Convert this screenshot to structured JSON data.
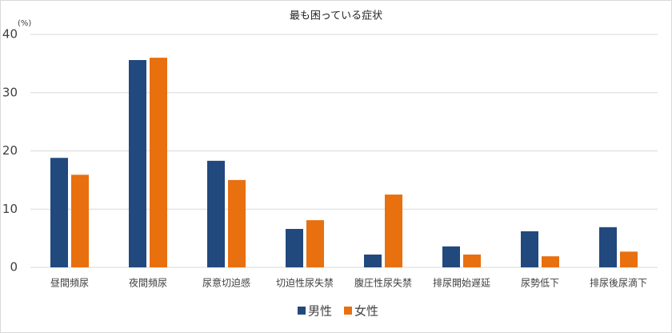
{
  "chart_data": {
    "type": "bar",
    "title": "最も困っている症状",
    "ylabel": "(%)",
    "categories": [
      "昼間頻尿",
      "夜間頻尿",
      "尿意切迫感",
      "切迫性尿失禁",
      "腹圧性尿失禁",
      "排尿開始遅延",
      "尿勢低下",
      "排尿後尿滴下"
    ],
    "series": [
      {
        "name": "男性",
        "color": "#22497d",
        "values": [
          18.8,
          35.6,
          18.3,
          6.6,
          2.2,
          3.6,
          6.2,
          6.9
        ]
      },
      {
        "name": "女性",
        "color": "#e8700f",
        "values": [
          15.9,
          36.0,
          15.0,
          8.1,
          12.5,
          2.2,
          1.9,
          2.7
        ]
      }
    ],
    "ylim": [
      0,
      40
    ],
    "yticks": [
      0,
      10,
      20,
      30,
      40
    ],
    "grid": true,
    "legend": "bottom"
  }
}
